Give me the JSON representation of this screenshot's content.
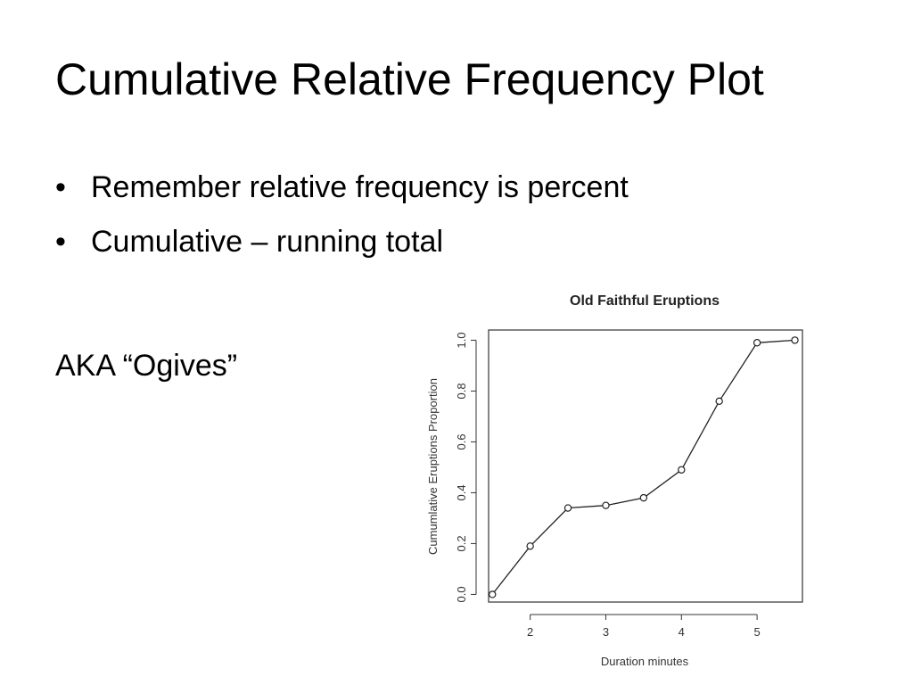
{
  "slide": {
    "title": "Cumulative Relative Frequency Plot",
    "bullets": [
      "Remember relative frequency is percent",
      "Cumulative – running total"
    ],
    "bullet_glyph": "•",
    "aka": "AKA “Ogives”"
  },
  "chart_data": {
    "type": "line",
    "title": "Old Faithful Eruptions",
    "xlabel": "Duration minutes",
    "ylabel": "Cumumlative Eruptions Proportion",
    "x": [
      1.5,
      2.0,
      2.5,
      3.0,
      3.5,
      4.0,
      4.5,
      5.0,
      5.5
    ],
    "y": [
      0.0,
      0.19,
      0.34,
      0.35,
      0.38,
      0.49,
      0.76,
      0.99,
      1.0
    ],
    "xlim": [
      1.45,
      5.6
    ],
    "ylim": [
      -0.03,
      1.04
    ],
    "xticks": [
      2,
      3,
      4,
      5
    ],
    "yticks": [
      0.0,
      0.2,
      0.4,
      0.6,
      0.8,
      1.0
    ],
    "ytick_labels": [
      "0.0",
      "0.2",
      "0.4",
      "0.6",
      "0.8",
      "1.0"
    ],
    "markers": "open-circle",
    "grid": false,
    "line_color": "#222222"
  }
}
